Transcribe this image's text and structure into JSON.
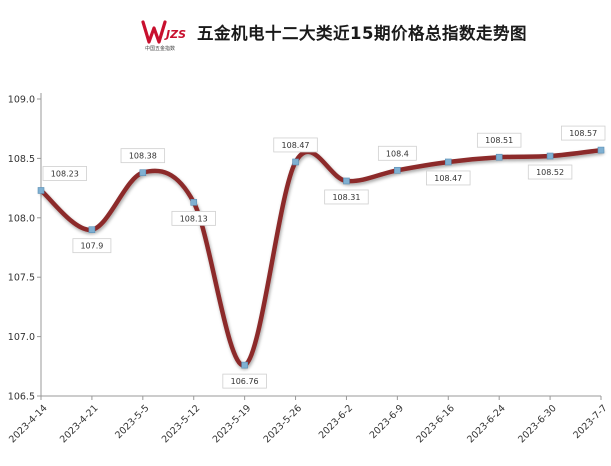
{
  "chart_data": {
    "type": "line",
    "title": "五金机电十二大类近15期价格总指数走势图",
    "logo_text": "WJZS",
    "logo_subtext": "中国五金指数",
    "categories": [
      "2023-4-14",
      "2023-4-21",
      "2023-5-5",
      "2023-5-12",
      "2023-5-19",
      "2023-5-26",
      "2023-6-2",
      "2023-6-9",
      "2023-6-16",
      "2023-6-24",
      "2023-6-30",
      "2023-7-7"
    ],
    "values": [
      108.23,
      107.9,
      108.38,
      108.13,
      106.76,
      108.47,
      108.31,
      108.4,
      108.47,
      108.51,
      108.52,
      108.57
    ],
    "data_labels": [
      "108.23",
      "107.9",
      "108.38",
      "108.13",
      "106.76",
      "108.47",
      "108.31",
      "108.4",
      "108.47",
      "108.51",
      "108.52",
      "108.57"
    ],
    "y_ticks": [
      "109.0",
      "108.5",
      "108.0",
      "107.5",
      "107.0",
      "106.5"
    ],
    "y_tick_values": [
      109.0,
      108.5,
      108.0,
      107.5,
      107.0,
      106.5
    ],
    "ylim": [
      106.5,
      109.0
    ],
    "xlabel": "",
    "ylabel": "",
    "grid": false,
    "legend": "none",
    "colors": {
      "line": "#8c2a2a",
      "marker": "#7fb0d2",
      "axis": "#999999",
      "label_text": "#333333"
    }
  }
}
